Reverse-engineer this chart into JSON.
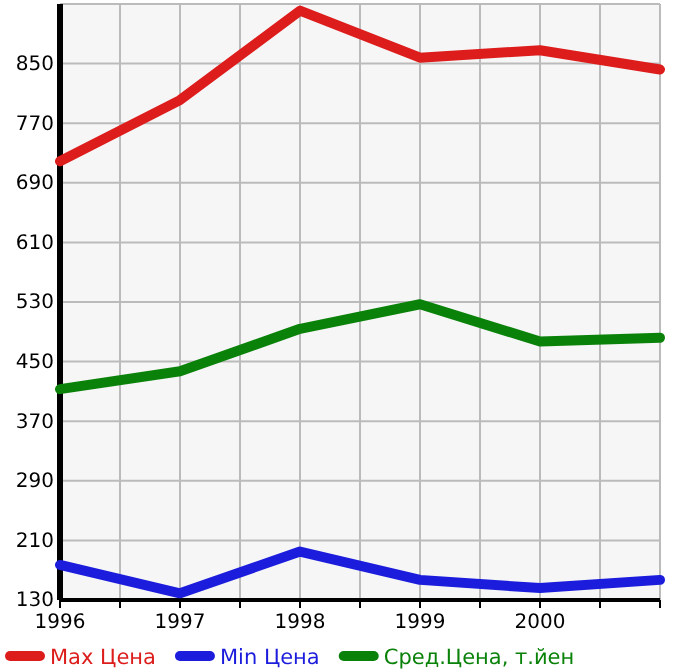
{
  "chart_data": {
    "type": "line",
    "x": [
      1996,
      1997,
      1998,
      1999,
      2000,
      2001
    ],
    "series": [
      {
        "name": "Max Цена",
        "color": "#dd1c1c",
        "values": [
          719,
          801,
          921,
          858,
          868,
          842
        ]
      },
      {
        "name": "Min Цена",
        "color": "#1c1cdd",
        "values": [
          177,
          139,
          195,
          157,
          146,
          157
        ]
      },
      {
        "name": "Сред.Цена, т.йен",
        "color": "#0a820a",
        "values": [
          413,
          437,
          494,
          527,
          477,
          482
        ]
      }
    ],
    "xlim": [
      1996,
      2001
    ],
    "xticks": [
      1996,
      {
        "value": 1996.5,
        "label": null
      },
      1997,
      {
        "value": 1997.5,
        "label": null
      },
      1998,
      {
        "value": 1998.5,
        "label": null
      },
      1999,
      {
        "value": 1999.5,
        "label": null
      },
      2000,
      {
        "value": 2000.5,
        "label": null
      },
      {
        "value": 2001,
        "label": null
      }
    ],
    "ylim": [
      130,
      930
    ],
    "yticks": [
      130,
      210,
      290,
      370,
      450,
      530,
      610,
      690,
      770,
      850,
      {
        "value": 930,
        "label": null
      }
    ],
    "grid": true,
    "legend": "bottom",
    "marker": "none",
    "line_style": "solid"
  }
}
